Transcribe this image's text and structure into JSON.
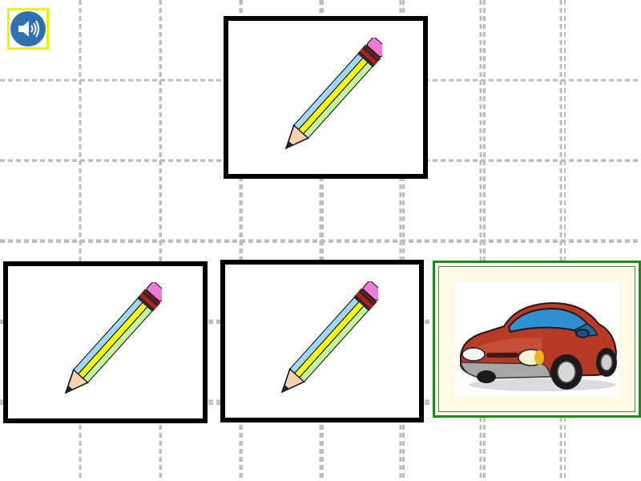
{
  "toolbar": {
    "sound_icon": "speaker-icon",
    "sound_border_color": "#f5ee00",
    "sound_bg_color": "#2f6fb3"
  },
  "cards": [
    {
      "id": "target",
      "picture": "pencil",
      "border_color": "#000000"
    },
    {
      "id": "choice-1",
      "picture": "pencil",
      "border_color": "#000000"
    },
    {
      "id": "choice-2",
      "picture": "pencil",
      "border_color": "#000000"
    },
    {
      "id": "choice-3",
      "picture": "car",
      "border_color": "#1e8a1e",
      "selected": true
    }
  ],
  "colors": {
    "grid_line": "#bdbdbd",
    "pencil_body": "#ffff00",
    "pencil_stripe_blue": "#9fd8ff",
    "pencil_stripe_green": "#c4f5a0",
    "pencil_eraser": "#f07ad8",
    "car_body": "#b83a26",
    "car_window": "#2f8fd0"
  }
}
